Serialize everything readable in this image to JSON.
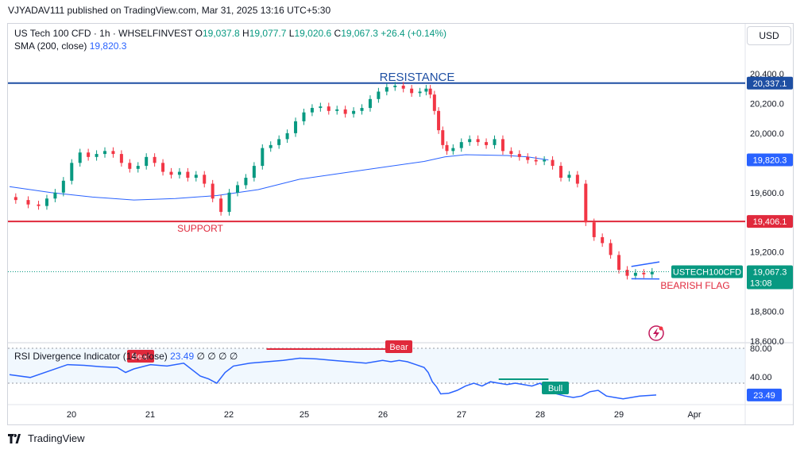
{
  "header": {
    "publisher": "VJYADAV111 published on TradingView.com, Mar 31, 2025 13:16 UTC+5:30"
  },
  "legend": {
    "symbol": "US Tech 100 CFD · 1h · WHSELFINVEST",
    "o_label": "O",
    "o": "19,037.8",
    "h_label": "H",
    "h": "19,077.7",
    "l_label": "L",
    "l": "19,020.6",
    "c_label": "C",
    "c": "19,067.3",
    "change": "+26.4 (+0.14%)",
    "sma_label": "SMA (200, close)",
    "sma_value": "19,820.3"
  },
  "currency_button": "USD",
  "rsi_legend": {
    "name": "RSI Divergence Indicator (14, close)",
    "value": "23.49",
    "extras": "∅ ∅ ∅ ∅"
  },
  "footer": {
    "brand": "TradingView"
  },
  "colors": {
    "up": "#089981",
    "down": "#f23645",
    "resistance": "#1e4fa3",
    "support": "#e0293c",
    "sma": "#2962ff",
    "rsi": "#2962ff"
  },
  "chart_data": {
    "type": "candlestick",
    "price_axis": {
      "ticks": [
        "20,400.0",
        "20,200.0",
        "20,000.0",
        "19,600.0",
        "19,200.0",
        "18,800.0",
        "18,600.0"
      ],
      "tick_values": [
        20400,
        20200,
        20000,
        19600,
        19200,
        18800,
        18600
      ]
    },
    "x_ticks": [
      "20",
      "21",
      "22",
      "25",
      "26",
      "27",
      "28",
      "29",
      "Apr"
    ],
    "levels": [
      {
        "name": "RESISTANCE",
        "value": 20337.1,
        "label": "20,337.1"
      },
      {
        "name": "SUPPORT",
        "value": 19406.1,
        "label": "19,406.1"
      }
    ],
    "sma_label": "19,820.3",
    "last_price": {
      "symbol": "USTECH100CFD",
      "value": 19067.3,
      "label": "19,067.3",
      "countdown": "13:08"
    },
    "pattern": "BEARISH FLAG",
    "price_path": [
      [
        0,
        19570
      ],
      [
        3,
        19550
      ],
      [
        6,
        19520
      ],
      [
        8,
        19510
      ],
      [
        10,
        19560
      ],
      [
        12,
        19600
      ],
      [
        14,
        19680
      ],
      [
        16,
        19800
      ],
      [
        18,
        19870
      ],
      [
        20,
        19840
      ],
      [
        22,
        19860
      ],
      [
        24,
        19880
      ],
      [
        26,
        19860
      ],
      [
        28,
        19800
      ],
      [
        30,
        19760
      ],
      [
        32,
        19780
      ],
      [
        34,
        19840
      ],
      [
        36,
        19800
      ],
      [
        38,
        19740
      ],
      [
        40,
        19720
      ],
      [
        42,
        19740
      ],
      [
        44,
        19700
      ],
      [
        46,
        19720
      ],
      [
        48,
        19660
      ],
      [
        50,
        19560
      ],
      [
        52,
        19470
      ],
      [
        54,
        19600
      ],
      [
        56,
        19650
      ],
      [
        58,
        19700
      ],
      [
        60,
        19780
      ],
      [
        62,
        19900
      ],
      [
        64,
        19920
      ],
      [
        66,
        19960
      ],
      [
        68,
        20000
      ],
      [
        70,
        20080
      ],
      [
        72,
        20140
      ],
      [
        74,
        20170
      ],
      [
        76,
        20180
      ],
      [
        78,
        20150
      ],
      [
        80,
        20160
      ],
      [
        82,
        20130
      ],
      [
        84,
        20150
      ],
      [
        86,
        20170
      ],
      [
        88,
        20230
      ],
      [
        90,
        20280
      ],
      [
        92,
        20310
      ],
      [
        94,
        20320
      ],
      [
        96,
        20300
      ],
      [
        98,
        20270
      ],
      [
        100,
        20280
      ],
      [
        101,
        20300
      ],
      [
        102,
        20260
      ],
      [
        103,
        20150
      ],
      [
        104,
        20020
      ],
      [
        105,
        19920
      ],
      [
        106,
        19880
      ],
      [
        108,
        19900
      ],
      [
        110,
        19940
      ],
      [
        112,
        19960
      ],
      [
        114,
        19940
      ],
      [
        116,
        19920
      ],
      [
        118,
        19960
      ],
      [
        120,
        19880
      ],
      [
        122,
        19860
      ],
      [
        124,
        19840
      ],
      [
        126,
        19820
      ],
      [
        128,
        19810
      ],
      [
        130,
        19820
      ],
      [
        132,
        19780
      ],
      [
        134,
        19700
      ],
      [
        136,
        19720
      ],
      [
        138,
        19660
      ],
      [
        140,
        19400
      ],
      [
        142,
        19300
      ],
      [
        144,
        19260
      ],
      [
        146,
        19180
      ],
      [
        148,
        19080
      ],
      [
        150,
        19040
      ],
      [
        152,
        19060
      ],
      [
        154,
        19050
      ],
      [
        156,
        19067
      ]
    ],
    "sma_path": [
      [
        0,
        19640
      ],
      [
        10,
        19600
      ],
      [
        20,
        19570
      ],
      [
        30,
        19550
      ],
      [
        40,
        19560
      ],
      [
        50,
        19580
      ],
      [
        60,
        19620
      ],
      [
        70,
        19690
      ],
      [
        80,
        19730
      ],
      [
        90,
        19770
      ],
      [
        100,
        19810
      ],
      [
        105,
        19840
      ],
      [
        110,
        19855
      ],
      [
        120,
        19850
      ],
      [
        125,
        19840
      ],
      [
        130,
        19820
      ]
    ],
    "rsi_axis": {
      "ticks": [
        "80.00",
        "40.00"
      ],
      "tick_values": [
        80,
        40
      ],
      "last": "23.49"
    },
    "rsi_path": [
      [
        0,
        52
      ],
      [
        5,
        48
      ],
      [
        10,
        58
      ],
      [
        14,
        66
      ],
      [
        18,
        65
      ],
      [
        22,
        63
      ],
      [
        26,
        62
      ],
      [
        28,
        55
      ],
      [
        30,
        60
      ],
      [
        34,
        66
      ],
      [
        38,
        64
      ],
      [
        42,
        68
      ],
      [
        46,
        50
      ],
      [
        48,
        46
      ],
      [
        50,
        40
      ],
      [
        52,
        55
      ],
      [
        54,
        64
      ],
      [
        58,
        68
      ],
      [
        62,
        70
      ],
      [
        66,
        72
      ],
      [
        70,
        75
      ],
      [
        74,
        74
      ],
      [
        78,
        72
      ],
      [
        82,
        70
      ],
      [
        86,
        68
      ],
      [
        90,
        72
      ],
      [
        92,
        70
      ],
      [
        94,
        72
      ],
      [
        96,
        70
      ],
      [
        98,
        66
      ],
      [
        100,
        62
      ],
      [
        101,
        55
      ],
      [
        102,
        42
      ],
      [
        103,
        35
      ],
      [
        104,
        25
      ],
      [
        106,
        26
      ],
      [
        108,
        30
      ],
      [
        110,
        36
      ],
      [
        112,
        40
      ],
      [
        114,
        36
      ],
      [
        116,
        42
      ],
      [
        118,
        40
      ],
      [
        120,
        38
      ],
      [
        122,
        40
      ],
      [
        124,
        38
      ],
      [
        126,
        36
      ],
      [
        128,
        40
      ],
      [
        130,
        30
      ],
      [
        132,
        25
      ],
      [
        134,
        22
      ],
      [
        136,
        20
      ],
      [
        138,
        22
      ],
      [
        140,
        28
      ],
      [
        142,
        30
      ],
      [
        144,
        22
      ],
      [
        146,
        20
      ],
      [
        148,
        18
      ],
      [
        150,
        20
      ],
      [
        152,
        22
      ],
      [
        156,
        23.49
      ]
    ],
    "rsi_signals": [
      "Bear",
      "Bear",
      "Bull"
    ]
  }
}
